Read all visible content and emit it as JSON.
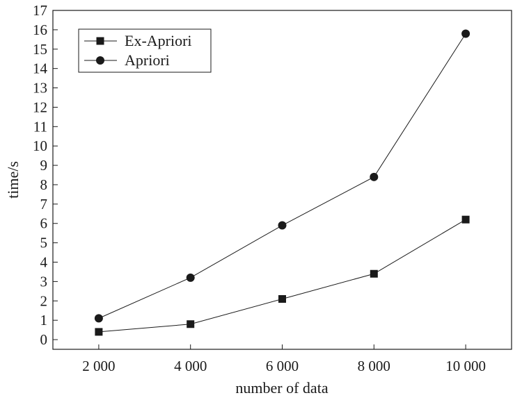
{
  "chart_data": {
    "type": "line",
    "xlabel": "number of data",
    "ylabel": "time/s",
    "x": [
      2000,
      4000,
      6000,
      8000,
      10000
    ],
    "x_tick_labels": [
      "2 000",
      "4 000",
      "6 000",
      "8 000",
      "10 000"
    ],
    "xlim": [
      1000,
      11000
    ],
    "ylim": [
      -0.5,
      17
    ],
    "y_ticks": [
      0,
      1,
      2,
      3,
      4,
      5,
      6,
      7,
      8,
      9,
      10,
      11,
      12,
      13,
      14,
      15,
      16,
      17
    ],
    "grid": false,
    "legend_position": "top-left",
    "series": [
      {
        "name": "Ex-Apriori",
        "marker": "square",
        "values": [
          0.4,
          0.8,
          2.1,
          3.4,
          6.2
        ]
      },
      {
        "name": "Apriori",
        "marker": "circle",
        "values": [
          1.1,
          3.2,
          5.9,
          8.4,
          15.8
        ]
      }
    ],
    "colors": {
      "line": "#1a1a1a",
      "marker": "#1a1a1a"
    }
  }
}
